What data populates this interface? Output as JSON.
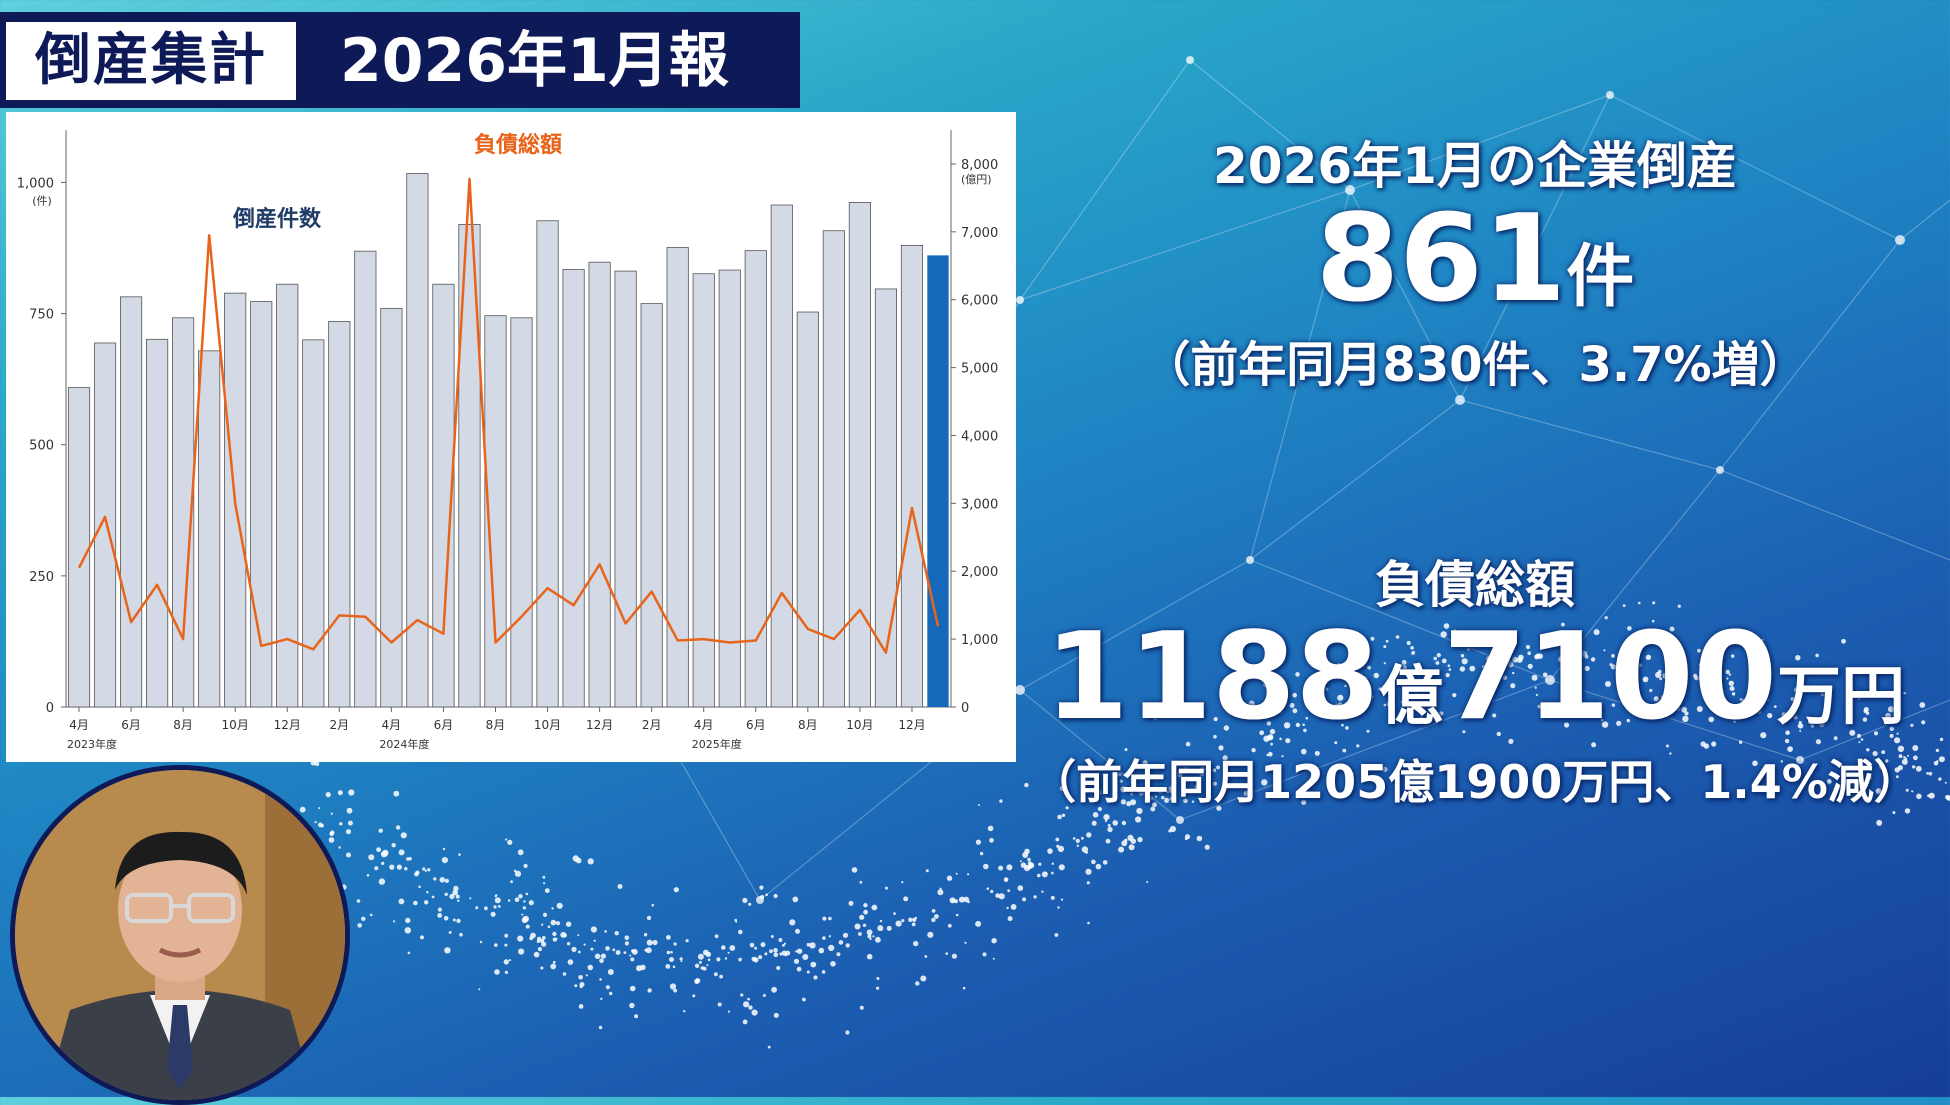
{
  "header": {
    "tag": "倒産集計",
    "title": "2026年1月報"
  },
  "stats": {
    "heading": "2026年1月の企業倒産",
    "count_value": "861",
    "count_unit": "件",
    "count_note": "（前年同月830件、3.7%増）",
    "debt_heading": "負債総額",
    "debt_value_a": "1188",
    "debt_unit_a": "億",
    "debt_value_b": "7100",
    "debt_unit_b": "万円",
    "debt_note": "（前年同月1205億1900万円、1.4%減）"
  },
  "colors": {
    "bar": "#d3dae6",
    "bar_highlight": "#1569bb",
    "line": "#e8641b",
    "count_label": "#1f3c66"
  },
  "chart_data": {
    "type": "bar",
    "series": [
      {
        "name": "倒産件数",
        "axis": "left",
        "type": "bar",
        "values": [
          609,
          694,
          782,
          701,
          742,
          679,
          789,
          773,
          806,
          700,
          735,
          869,
          760,
          1017,
          806,
          920,
          746,
          742,
          927,
          834,
          848,
          831,
          769,
          876,
          826,
          833,
          870,
          957,
          753,
          908,
          962,
          797,
          880,
          861
        ]
      },
      {
        "name": "負債総額",
        "axis": "right",
        "type": "line",
        "values": [
          2050,
          2800,
          1250,
          1800,
          1000,
          6950,
          3000,
          900,
          1000,
          850,
          1350,
          1330,
          950,
          1280,
          1080,
          7780,
          950,
          1330,
          1750,
          1500,
          2100,
          1230,
          1700,
          980,
          1000,
          950,
          980,
          1680,
          1150,
          1000,
          1430,
          800,
          2930,
          1190
        ]
      }
    ],
    "x_ticks": [
      "4月",
      "6月",
      "8月",
      "10月",
      "12月",
      "2月",
      "4月",
      "6月",
      "8月",
      "10月",
      "12月",
      "2月",
      "4月",
      "6月",
      "8月",
      "10月",
      "12月"
    ],
    "fiscal_years": [
      "2023年度",
      "2024年度",
      "2025年度"
    ],
    "ylim_left": [
      0,
      1100
    ],
    "yticks_left": [
      "0",
      "250",
      "500",
      "750",
      "1,000"
    ],
    "ylabel_left": "(件)",
    "ylim_right": [
      0,
      8500
    ],
    "yticks_right": [
      "0",
      "1,000",
      "2,000",
      "3,000",
      "4,000",
      "5,000",
      "6,000",
      "7,000",
      "8,000"
    ],
    "ylabel_right": "(億円)",
    "highlight_index": 33
  }
}
